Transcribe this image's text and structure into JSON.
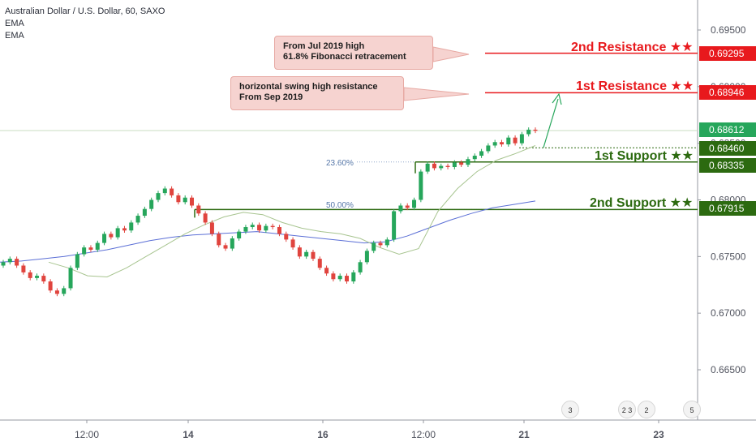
{
  "header": {
    "title": "Australian Dollar / U.S. Dollar, 60, SAXO",
    "indicators": [
      "EMA",
      "EMA"
    ]
  },
  "annotations": {
    "callout_top": [
      "From Jul 2019 high",
      "61.8% Fibonacci retracement"
    ],
    "callout_mid": [
      "horizontal swing high resistance",
      "From Sep 2019"
    ],
    "fib_23": "23.60%",
    "fib_50": "50.00%"
  },
  "levels": [
    {
      "label": "2nd Resistance ★★",
      "price": "0.69295",
      "value": 0.69295,
      "color": "#e8191d"
    },
    {
      "label": "1st Resistance ★★",
      "price": "0.68946",
      "value": 0.68946,
      "color": "#e8191d"
    },
    {
      "label": "1st Support ★★",
      "price": "0.68460",
      "value": 0.6846,
      "color": "#2c6a10"
    },
    {
      "label": "2nd Support ★★",
      "price": "0.68335",
      "value": 0.68335,
      "color": "#2c6a10"
    },
    {
      "label": "",
      "price": "0.67915",
      "value": 0.67915,
      "color": "#2c6a10"
    }
  ],
  "events": [
    {
      "label": "3"
    },
    {
      "label": "2 3"
    },
    {
      "label": "2"
    },
    {
      "label": "5"
    }
  ],
  "colors": {
    "up": "#26a69a",
    "down": "#ef5350",
    "candle_up": "#26a65b",
    "candle_down": "#e0443e",
    "ema_fast": "#a7c48f",
    "ema_slow": "#5b6fd6",
    "current": "#26a65b"
  },
  "chart_data": {
    "type": "candlestick",
    "title": "Australian Dollar / U.S. Dollar, 60, SAXO",
    "y_ticks": [
      "0.69500",
      "0.69000",
      "0.68500",
      "0.68000",
      "0.67500",
      "0.67000",
      "0.66500"
    ],
    "ylim": [
      0.6605,
      0.6985
    ],
    "x_ticks": [
      "12:00",
      "14",
      "16",
      "12:00",
      "21",
      "23"
    ],
    "current_price": "0.68612",
    "current_value": 0.68612,
    "fib_levels": [
      {
        "label": "23.60%",
        "value": 0.68335
      },
      {
        "label": "50.00%",
        "value": 0.67915
      }
    ],
    "closes": [
      0.6745,
      0.6748,
      0.6742,
      0.6736,
      0.6731,
      0.6733,
      0.6728,
      0.672,
      0.6717,
      0.6722,
      0.674,
      0.6752,
      0.6758,
      0.6756,
      0.6762,
      0.677,
      0.6767,
      0.6775,
      0.6773,
      0.678,
      0.6786,
      0.6792,
      0.68,
      0.6806,
      0.681,
      0.6804,
      0.6798,
      0.6802,
      0.6795,
      0.6788,
      0.678,
      0.677,
      0.676,
      0.6757,
      0.6766,
      0.6772,
      0.6776,
      0.6778,
      0.6773,
      0.6777,
      0.6776,
      0.677,
      0.6765,
      0.6758,
      0.675,
      0.6754,
      0.6748,
      0.674,
      0.6735,
      0.673,
      0.6733,
      0.6728,
      0.6736,
      0.6745,
      0.6755,
      0.6762,
      0.676,
      0.6765,
      0.679,
      0.6795,
      0.6793,
      0.68,
      0.6825,
      0.6832,
      0.6828,
      0.683,
      0.6829,
      0.6833,
      0.6831,
      0.6836,
      0.6839,
      0.6843,
      0.6848,
      0.6851,
      0.6849,
      0.6855,
      0.685,
      0.6858,
      0.6862,
      0.6861
    ],
    "ema_fast": [
      0.6745,
      0.674,
      0.6733,
      0.6732,
      0.674,
      0.675,
      0.676,
      0.677,
      0.6778,
      0.6785,
      0.6789,
      0.6787,
      0.678,
      0.6775,
      0.6772,
      0.677,
      0.6766,
      0.6758,
      0.6752,
      0.6757,
      0.679,
      0.681,
      0.6825,
      0.6835,
      0.6841,
      0.6848
    ],
    "ema_slow": [
      0.6745,
      0.6746,
      0.6748,
      0.675,
      0.6753,
      0.6756,
      0.676,
      0.6764,
      0.6767,
      0.6769,
      0.677,
      0.6771,
      0.6772,
      0.677,
      0.6768,
      0.6766,
      0.6764,
      0.6762,
      0.6763,
      0.6768,
      0.6775,
      0.6782,
      0.6788,
      0.6793,
      0.6796,
      0.6799
    ]
  }
}
